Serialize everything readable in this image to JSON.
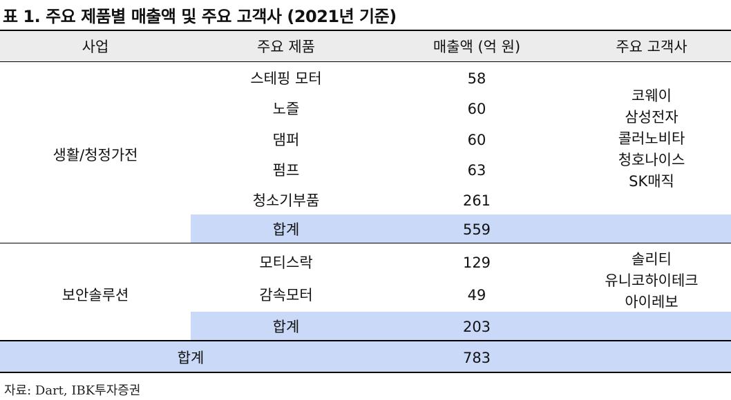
{
  "title": "표 1. 주요 제품별 매출액 및 주요 고객사 (2021년 기준)",
  "columns": [
    "사업",
    "주요 제품",
    "매출액 (억 원)",
    "주요 고객사"
  ],
  "groups": [
    {
      "business": "생활/청정가전",
      "products": [
        {
          "name": "스테핑 모터",
          "revenue": "58"
        },
        {
          "name": "노즐",
          "revenue": "60"
        },
        {
          "name": "댐퍼",
          "revenue": "60"
        },
        {
          "name": "펌프",
          "revenue": "63"
        },
        {
          "name": "청소기부품",
          "revenue": "261"
        }
      ],
      "customers": [
        "코웨이",
        "삼성전자",
        "콜러노비타",
        "청호나이스",
        "SK매직"
      ],
      "subtotal_label": "합계",
      "subtotal": "559"
    },
    {
      "business": "보안솔루션",
      "products": [
        {
          "name": "모티스락",
          "revenue": "129"
        },
        {
          "name": "감속모터",
          "revenue": "49"
        }
      ],
      "customers": [
        "솔리티",
        "유니코하이테크",
        "아이레보"
      ],
      "subtotal_label": "합계",
      "subtotal": "203"
    }
  ],
  "total_label": "합계",
  "total": "783",
  "source": "자료: Dart, IBK투자증권",
  "colors": {
    "band": "#c9d9f7",
    "header_bg": "#ececec"
  }
}
